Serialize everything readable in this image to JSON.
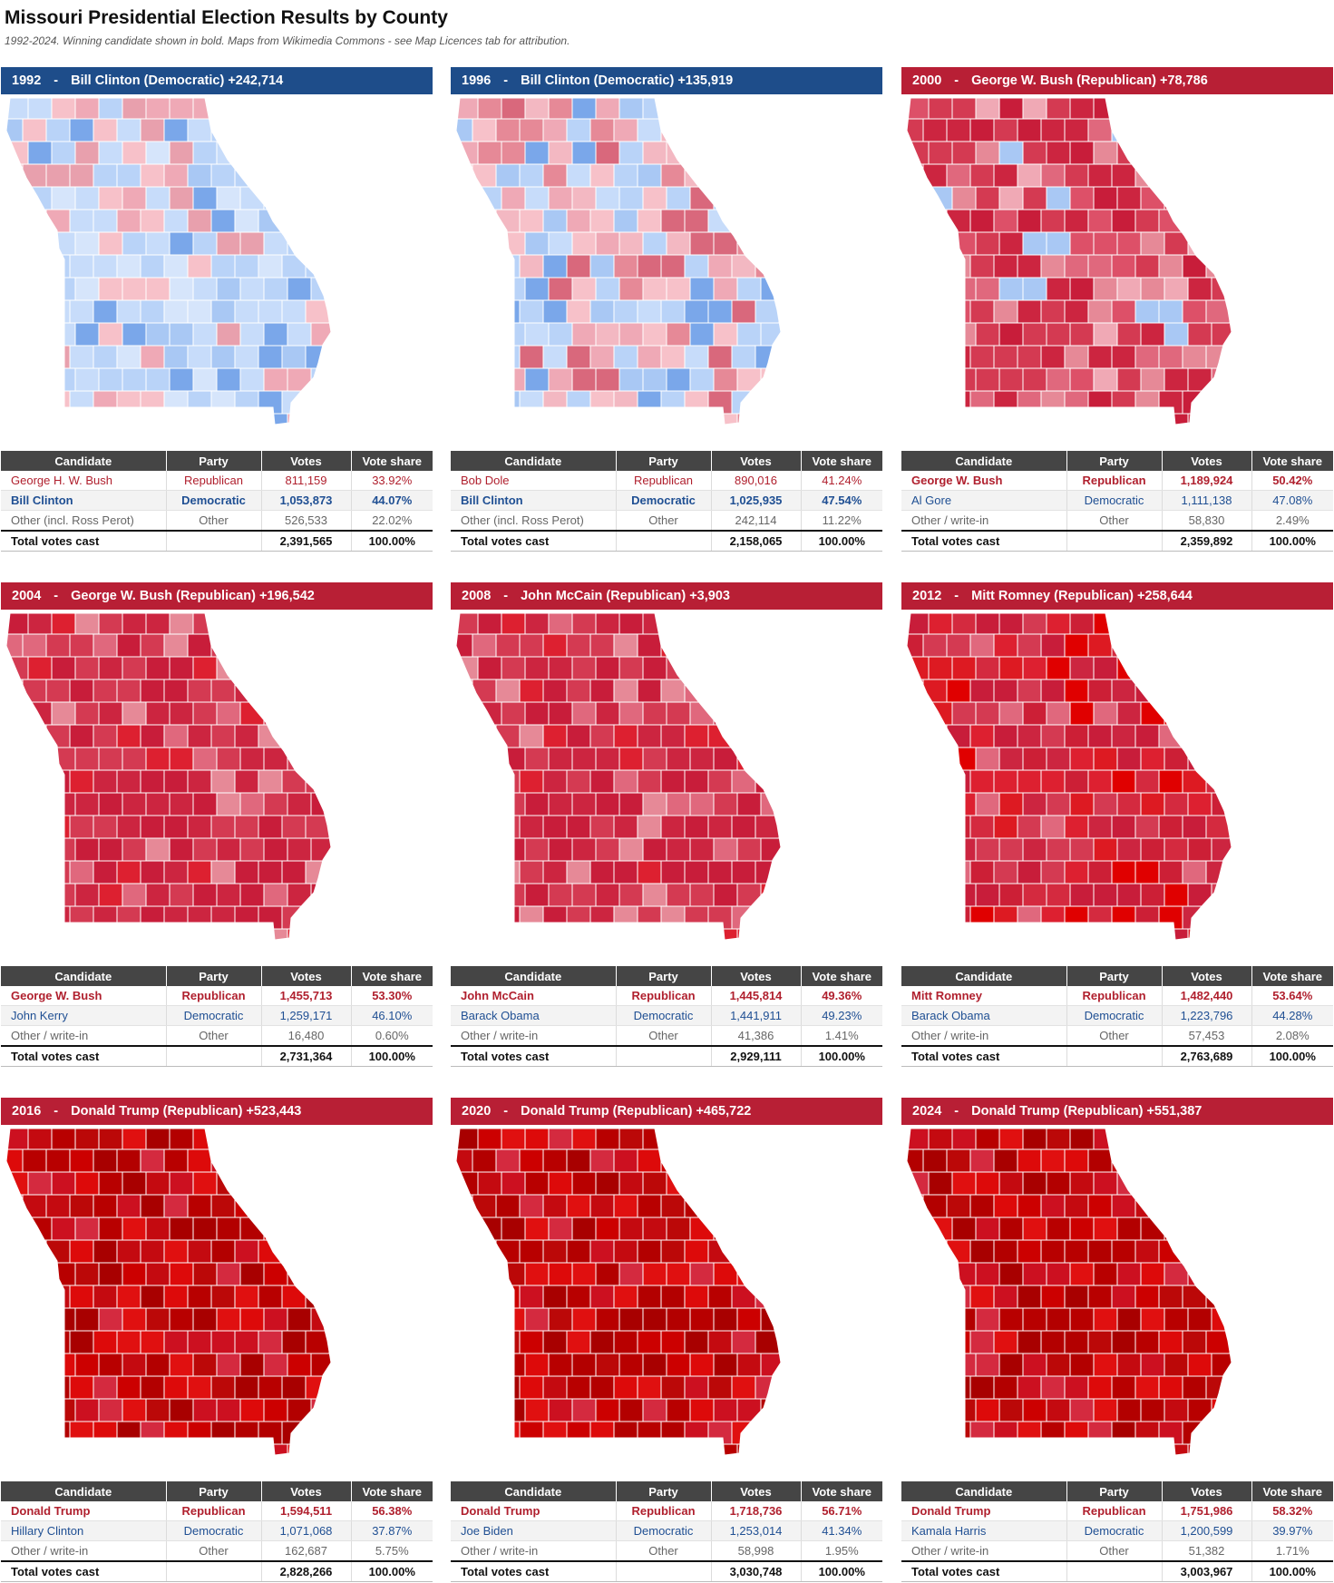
{
  "title": "Missouri Presidential Election Results by County",
  "subtitle": "1992-2024. Winning candidate shown in bold. Maps from Wikimedia Commons - see Map Licences tab for attribution.",
  "table_headers": [
    "Candidate",
    "Party",
    "Votes",
    "Vote share"
  ],
  "colors": {
    "dem_banner": "#1e4d8a",
    "rep_banner": "#b81f35",
    "dem_text": "#1f4f93",
    "rep_text": "#b0202e",
    "header_bg": "#454545"
  },
  "panels": [
    {
      "year": "1992",
      "party": "dem",
      "headline": "Bill Clinton (Democratic) +242,714",
      "map_shade": "dem-lean",
      "rows": [
        {
          "candidate": "George H. W. Bush",
          "party": "Republican",
          "votes": "811,159",
          "share": "33.92%",
          "type": "rep",
          "win": false
        },
        {
          "candidate": "Bill Clinton",
          "party": "Democratic",
          "votes": "1,053,873",
          "share": "44.07%",
          "type": "dem",
          "win": true
        },
        {
          "candidate": "Other (incl. Ross Perot)",
          "party": "Other",
          "votes": "526,533",
          "share": "22.02%",
          "type": "oth",
          "win": false
        }
      ],
      "total": {
        "label": "Total votes cast",
        "votes": "2,391,565",
        "share": "100.00%"
      }
    },
    {
      "year": "1996",
      "party": "dem",
      "headline": "Bill Clinton (Democratic) +135,919",
      "map_shade": "mixed",
      "rows": [
        {
          "candidate": "Bob Dole",
          "party": "Republican",
          "votes": "890,016",
          "share": "41.24%",
          "type": "rep",
          "win": false
        },
        {
          "candidate": "Bill Clinton",
          "party": "Democratic",
          "votes": "1,025,935",
          "share": "47.54%",
          "type": "dem",
          "win": true
        },
        {
          "candidate": "Other (incl. Ross Perot)",
          "party": "Other",
          "votes": "242,114",
          "share": "11.22%",
          "type": "oth",
          "win": false
        }
      ],
      "total": {
        "label": "Total votes cast",
        "votes": "2,158,065",
        "share": "100.00%"
      }
    },
    {
      "year": "2000",
      "party": "rep",
      "headline": "George W. Bush (Republican) +78,786",
      "map_shade": "rep-lean",
      "rows": [
        {
          "candidate": "George W. Bush",
          "party": "Republican",
          "votes": "1,189,924",
          "share": "50.42%",
          "type": "rep",
          "win": true
        },
        {
          "candidate": "Al Gore",
          "party": "Democratic",
          "votes": "1,111,138",
          "share": "47.08%",
          "type": "dem",
          "win": false
        },
        {
          "candidate": "Other / write-in",
          "party": "Other",
          "votes": "58,830",
          "share": "2.49%",
          "type": "oth",
          "win": false
        }
      ],
      "total": {
        "label": "Total votes cast",
        "votes": "2,359,892",
        "share": "100.00%"
      }
    },
    {
      "year": "2004",
      "party": "rep",
      "headline": "George W. Bush (Republican) +196,542",
      "map_shade": "rep",
      "rows": [
        {
          "candidate": "George W. Bush",
          "party": "Republican",
          "votes": "1,455,713",
          "share": "53.30%",
          "type": "rep",
          "win": true
        },
        {
          "candidate": "John Kerry",
          "party": "Democratic",
          "votes": "1,259,171",
          "share": "46.10%",
          "type": "dem",
          "win": false
        },
        {
          "candidate": "Other / write-in",
          "party": "Other",
          "votes": "16,480",
          "share": "0.60%",
          "type": "oth",
          "win": false
        }
      ],
      "total": {
        "label": "Total votes cast",
        "votes": "2,731,364",
        "share": "100.00%"
      }
    },
    {
      "year": "2008",
      "party": "rep",
      "headline": "John McCain (Republican) +3,903",
      "map_shade": "rep",
      "rows": [
        {
          "candidate": "John McCain",
          "party": "Republican",
          "votes": "1,445,814",
          "share": "49.36%",
          "type": "rep",
          "win": true
        },
        {
          "candidate": "Barack Obama",
          "party": "Democratic",
          "votes": "1,441,911",
          "share": "49.23%",
          "type": "dem",
          "win": false
        },
        {
          "candidate": "Other / write-in",
          "party": "Other",
          "votes": "41,386",
          "share": "1.41%",
          "type": "oth",
          "win": false
        }
      ],
      "total": {
        "label": "Total votes cast",
        "votes": "2,929,111",
        "share": "100.00%"
      }
    },
    {
      "year": "2012",
      "party": "rep",
      "headline": "Mitt Romney (Republican) +258,644",
      "map_shade": "rep-strong",
      "rows": [
        {
          "candidate": "Mitt Romney",
          "party": "Republican",
          "votes": "1,482,440",
          "share": "53.64%",
          "type": "rep",
          "win": true
        },
        {
          "candidate": "Barack Obama",
          "party": "Democratic",
          "votes": "1,223,796",
          "share": "44.28%",
          "type": "dem",
          "win": false
        },
        {
          "candidate": "Other / write-in",
          "party": "Other",
          "votes": "57,453",
          "share": "2.08%",
          "type": "oth",
          "win": false
        }
      ],
      "total": {
        "label": "Total votes cast",
        "votes": "2,763,689",
        "share": "100.00%"
      }
    },
    {
      "year": "2016",
      "party": "rep",
      "headline": "Donald Trump (Republican) +523,443",
      "map_shade": "rep-deep",
      "rows": [
        {
          "candidate": "Donald Trump",
          "party": "Republican",
          "votes": "1,594,511",
          "share": "56.38%",
          "type": "rep",
          "win": true
        },
        {
          "candidate": "Hillary Clinton",
          "party": "Democratic",
          "votes": "1,071,068",
          "share": "37.87%",
          "type": "dem",
          "win": false
        },
        {
          "candidate": "Other / write-in",
          "party": "Other",
          "votes": "162,687",
          "share": "5.75%",
          "type": "oth",
          "win": false
        }
      ],
      "total": {
        "label": "Total votes cast",
        "votes": "2,828,266",
        "share": "100.00%"
      }
    },
    {
      "year": "2020",
      "party": "rep",
      "headline": "Donald Trump (Republican) +465,722",
      "map_shade": "rep-deep",
      "rows": [
        {
          "candidate": "Donald Trump",
          "party": "Republican",
          "votes": "1,718,736",
          "share": "56.71%",
          "type": "rep",
          "win": true
        },
        {
          "candidate": "Joe Biden",
          "party": "Democratic",
          "votes": "1,253,014",
          "share": "41.34%",
          "type": "dem",
          "win": false
        },
        {
          "candidate": "Other / write-in",
          "party": "Other",
          "votes": "58,998",
          "share": "1.95%",
          "type": "oth",
          "win": false
        }
      ],
      "total": {
        "label": "Total votes cast",
        "votes": "3,030,748",
        "share": "100.00%"
      }
    },
    {
      "year": "2024",
      "party": "rep",
      "headline": "Donald Trump (Republican) +551,387",
      "map_shade": "rep-deep",
      "rows": [
        {
          "candidate": "Donald Trump",
          "party": "Republican",
          "votes": "1,751,986",
          "share": "58.32%",
          "type": "rep",
          "win": true
        },
        {
          "candidate": "Kamala Harris",
          "party": "Democratic",
          "votes": "1,200,599",
          "share": "39.97%",
          "type": "dem",
          "win": false
        },
        {
          "candidate": "Other / write-in",
          "party": "Other",
          "votes": "51,382",
          "share": "1.71%",
          "type": "oth",
          "win": false
        }
      ],
      "total": {
        "label": "Total votes cast",
        "votes": "3,003,967",
        "share": "100.00%"
      }
    }
  ]
}
